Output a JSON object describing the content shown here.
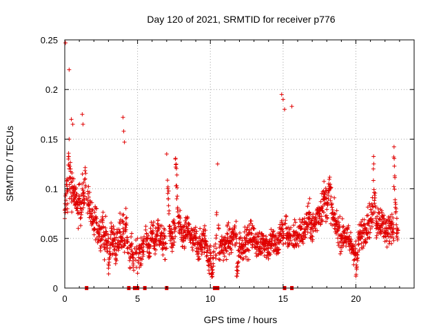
{
  "chart_data": {
    "type": "scatter",
    "title": "Day 120 of 2021, SRMTID for receiver p776",
    "xlabel": "GPS time / hours",
    "ylabel": "SRMTID / TECUs",
    "xlim": [
      0,
      24
    ],
    "ylim": [
      0,
      0.25
    ],
    "x_ticks": [
      0,
      5,
      10,
      15,
      20
    ],
    "x_tick_labels": [
      "0",
      "5",
      "10",
      "15",
      "20"
    ],
    "y_ticks": [
      0,
      0.05,
      0.1,
      0.15,
      0.2,
      0.25
    ],
    "y_tick_labels": [
      "0",
      "0.05",
      "0.1",
      "0.15",
      "0.2",
      "0.25"
    ],
    "grid": true,
    "marker": "+",
    "color": "#e00000",
    "series": [
      {
        "name": "SRMTID",
        "x": [
          0.0,
          0.1,
          0.15,
          0.2,
          0.25,
          0.3,
          0.35,
          0.4,
          0.45,
          0.5,
          0.55,
          0.6,
          0.65,
          0.7,
          0.8,
          0.9,
          1.0,
          1.1,
          1.2,
          1.3,
          1.4,
          1.5,
          1.6,
          1.7,
          1.8,
          1.9,
          2.0,
          2.1,
          2.2,
          2.3,
          2.4,
          2.5,
          2.6,
          2.7,
          2.8,
          2.9,
          3.0,
          3.1,
          3.2,
          3.3,
          3.4,
          3.5,
          3.6,
          3.7,
          3.8,
          3.9,
          4.0,
          4.1,
          4.2,
          4.3,
          4.4,
          4.5,
          4.6,
          4.7,
          4.8,
          4.9,
          5.0,
          5.1,
          5.2,
          5.4,
          5.6,
          5.8,
          6.0,
          6.2,
          6.4,
          6.6,
          6.8,
          7.0,
          7.2,
          7.4,
          7.6,
          7.8,
          8.0,
          8.2,
          8.4,
          8.6,
          8.8,
          9.0,
          9.2,
          9.4,
          9.6,
          9.8,
          10.0,
          10.2,
          10.4,
          10.6,
          10.8,
          11.0,
          11.2,
          11.4,
          11.6,
          11.8,
          12.0,
          12.2,
          12.4,
          12.6,
          12.8,
          13.0,
          13.2,
          13.4,
          13.6,
          13.8,
          14.0,
          14.2,
          14.4,
          14.6,
          14.8,
          14.9,
          15.0,
          15.1,
          15.2,
          15.4,
          15.6,
          15.8,
          16.0,
          16.2,
          16.4,
          16.6,
          16.8,
          17.0,
          17.2,
          17.4,
          17.6,
          17.8,
          18.0,
          18.2,
          18.4,
          18.6,
          18.8,
          19.0,
          19.2,
          19.4,
          19.6,
          19.8,
          20.0,
          20.2,
          20.4,
          20.6,
          20.8,
          21.0,
          21.2,
          21.4,
          21.6,
          21.8,
          22.0,
          22.2,
          22.4,
          22.6,
          22.8,
          0.05,
          0.3,
          0.45,
          0.55,
          1.2,
          1.25,
          4.0,
          4.05,
          4.1,
          7.0,
          7.6,
          10.5,
          14.9,
          15.0,
          15.1,
          15.6,
          21.2,
          22.6,
          3.0,
          5.0,
          9.9,
          10.1,
          11.8,
          20.0
        ],
        "y": [
          0.07,
          0.095,
          0.11,
          0.085,
          0.13,
          0.15,
          0.1,
          0.12,
          0.09,
          0.11,
          0.095,
          0.1,
          0.09,
          0.085,
          0.095,
          0.075,
          0.09,
          0.08,
          0.1,
          0.085,
          0.11,
          0.09,
          0.095,
          0.08,
          0.075,
          0.065,
          0.06,
          0.07,
          0.065,
          0.055,
          0.06,
          0.05,
          0.07,
          0.045,
          0.055,
          0.04,
          0.05,
          0.035,
          0.06,
          0.045,
          0.05,
          0.03,
          0.055,
          0.04,
          0.065,
          0.05,
          0.06,
          0.045,
          0.07,
          0.04,
          0.035,
          0.03,
          0.045,
          0.025,
          0.04,
          0.035,
          0.05,
          0.04,
          0.03,
          0.045,
          0.05,
          0.04,
          0.055,
          0.045,
          0.06,
          0.05,
          0.045,
          0.04,
          0.055,
          0.05,
          0.06,
          0.065,
          0.055,
          0.05,
          0.06,
          0.055,
          0.045,
          0.05,
          0.04,
          0.045,
          0.05,
          0.04,
          0.035,
          0.03,
          0.04,
          0.035,
          0.045,
          0.04,
          0.05,
          0.045,
          0.055,
          0.05,
          0.045,
          0.04,
          0.05,
          0.045,
          0.055,
          0.05,
          0.045,
          0.04,
          0.05,
          0.045,
          0.04,
          0.05,
          0.045,
          0.04,
          0.055,
          0.06,
          0.05,
          0.065,
          0.06,
          0.05,
          0.045,
          0.055,
          0.05,
          0.06,
          0.055,
          0.065,
          0.07,
          0.06,
          0.065,
          0.075,
          0.08,
          0.09,
          0.085,
          0.1,
          0.07,
          0.065,
          0.06,
          0.05,
          0.055,
          0.05,
          0.045,
          0.04,
          0.035,
          0.05,
          0.055,
          0.06,
          0.065,
          0.07,
          0.075,
          0.065,
          0.07,
          0.065,
          0.06,
          0.055,
          0.065,
          0.06,
          0.055,
          0.247,
          0.22,
          0.17,
          0.165,
          0.175,
          0.165,
          0.172,
          0.158,
          0.147,
          0.135,
          0.13,
          0.125,
          0.195,
          0.19,
          0.18,
          0.183,
          0.12,
          0.132,
          0.02,
          0.015,
          0.018,
          0.015,
          0.012,
          0.012
        ],
        "gap_markers_x": [
          1.5,
          4.4,
          4.8,
          5.0,
          5.5,
          7.0,
          10.3,
          10.5,
          15.1,
          15.6
        ]
      }
    ]
  }
}
